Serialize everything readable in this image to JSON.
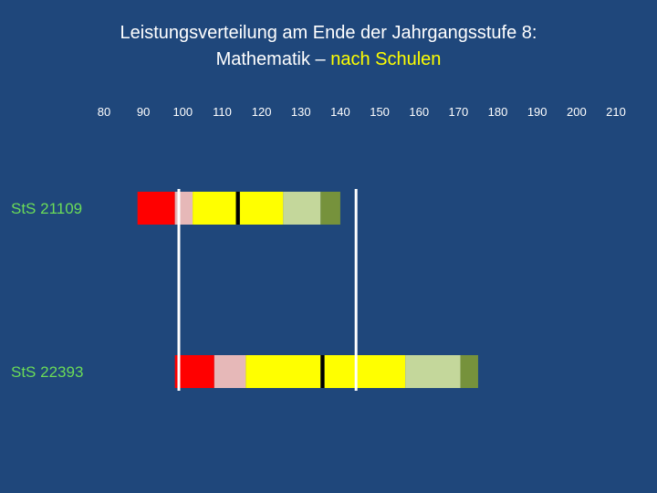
{
  "title": {
    "line1": "Leistungsverteilung am Ende der Jahrgangsstufe 8:",
    "line2_prefix": "Mathematik – ",
    "line2_highlight": "nach Schulen"
  },
  "colors": {
    "background": "#1f477b",
    "title": "#ffffff",
    "highlight": "#ffff00",
    "row_label": "#6bdc58",
    "marker": "#ffffff",
    "median": "#000000"
  },
  "chart_data": {
    "type": "bar",
    "orientation": "horizontal-stacked-range",
    "title": "Leistungsverteilung am Ende der Jahrgangsstufe 8: Mathematik – nach Schulen",
    "xlim": [
      80,
      210
    ],
    "xticks": [
      80,
      90,
      100,
      110,
      120,
      130,
      140,
      150,
      160,
      170,
      180,
      190,
      200,
      210
    ],
    "axis_position": "top",
    "reference_lines": [
      99,
      144
    ],
    "rows": [
      {
        "label": "StS 21109",
        "segments": [
          {
            "from": 88.5,
            "to": 98,
            "color": "#ff0000"
          },
          {
            "from": 98,
            "to": 102.5,
            "color": "#e6b8b8"
          },
          {
            "from": 102.5,
            "to": 113.5,
            "color": "#ffff00"
          },
          {
            "from": 113.5,
            "to": 114.5,
            "color": "#000000"
          },
          {
            "from": 114.5,
            "to": 125.5,
            "color": "#ffff00"
          },
          {
            "from": 125.5,
            "to": 135,
            "color": "#c4d79b"
          },
          {
            "from": 135,
            "to": 140,
            "color": "#76923c"
          }
        ]
      },
      {
        "label": "StS 22393",
        "segments": [
          {
            "from": 98,
            "to": 108,
            "color": "#ff0000"
          },
          {
            "from": 108,
            "to": 116,
            "color": "#e6b8b8"
          },
          {
            "from": 116,
            "to": 135,
            "color": "#ffff00"
          },
          {
            "from": 135,
            "to": 136,
            "color": "#000000"
          },
          {
            "from": 136,
            "to": 156.5,
            "color": "#ffff00"
          },
          {
            "from": 156.5,
            "to": 170.5,
            "color": "#c4d79b"
          },
          {
            "from": 170.5,
            "to": 175,
            "color": "#76923c"
          }
        ]
      }
    ]
  }
}
